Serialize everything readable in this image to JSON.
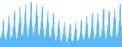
{
  "chart_data": {
    "type": "area",
    "values": [
      4,
      3,
      4,
      5,
      6,
      7,
      9,
      12,
      8,
      5,
      4,
      3,
      4,
      3,
      4,
      5,
      7,
      8,
      11,
      14,
      10,
      6,
      4,
      3,
      4,
      4,
      5,
      6,
      8,
      9,
      13,
      16,
      12,
      7,
      5,
      3,
      4,
      4,
      5,
      7,
      9,
      11,
      15,
      18,
      13,
      8,
      5,
      4,
      5,
      5,
      6,
      8,
      10,
      12,
      16,
      19,
      14,
      9,
      6,
      4,
      5,
      5,
      7,
      9,
      11,
      13,
      17,
      20,
      15,
      9,
      6,
      4,
      5,
      5,
      7,
      9,
      11,
      13,
      16,
      19,
      14,
      9,
      6,
      4,
      5,
      5,
      6,
      8,
      10,
      12,
      15,
      18,
      13,
      8,
      5,
      4,
      4,
      4,
      5,
      7,
      9,
      10,
      13,
      16,
      11,
      7,
      5,
      3,
      4,
      4,
      5,
      6,
      8,
      9,
      12,
      15,
      10,
      6,
      4,
      3,
      3,
      3,
      4,
      5,
      7,
      8,
      10,
      12,
      8,
      5,
      3,
      2,
      2,
      3,
      4,
      5,
      6,
      7,
      9,
      11,
      7,
      5,
      3,
      2,
      2,
      2,
      3,
      4,
      5,
      6,
      8,
      10,
      7,
      4,
      3,
      2,
      2,
      2,
      3,
      4,
      5,
      6,
      8,
      11,
      8,
      5,
      3,
      2,
      2,
      3,
      3,
      4,
      5,
      7,
      9,
      12,
      8,
      5,
      4,
      3,
      3,
      3,
      4,
      5,
      6,
      8,
      11,
      14,
      10,
      6,
      4,
      3,
      4,
      3,
      4,
      6,
      7,
      9,
      12,
      15,
      11,
      7,
      4,
      3,
      3,
      4,
      5,
      6,
      8,
      9,
      12,
      15,
      11,
      7,
      5,
      4,
      4,
      4,
      5,
      6,
      8,
      10,
      14,
      17,
      12,
      7,
      5,
      3,
      4,
      4,
      5,
      7,
      9,
      10,
      14,
      16,
      11,
      7,
      5,
      4,
      4,
      4,
      5,
      7,
      9,
      11,
      14,
      17,
      13,
      8,
      5,
      4,
      4,
      5,
      6,
      7,
      10,
      12,
      16,
      19,
      14,
      9,
      6,
      4
    ],
    "color": "#5bb8f5",
    "ylim": [
      0,
      21
    ],
    "grid": false,
    "tick_labels": false
  }
}
